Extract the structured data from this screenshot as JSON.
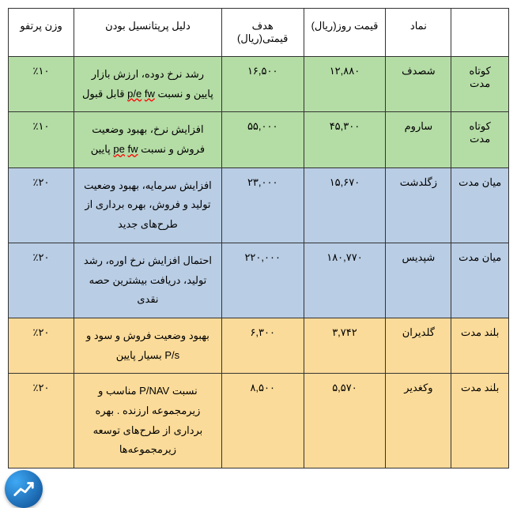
{
  "headers": {
    "term": "",
    "symbol": "نماد",
    "day_price": "قیمت روز(ریال)",
    "target_price": "هدف قیمتی(ریال)",
    "reason": "دلیل پرپتانسیل بودن",
    "weight": "وزن پرتفو"
  },
  "rows": [
    {
      "class": "green",
      "term": "کوتاه مدت",
      "symbol": "شصدف",
      "day_price": "۱۲,۸۸۰",
      "target_price": "۱۶,۵۰۰",
      "reason_html": "رشد نرخ دوده، ارزش بازار پایین و نسبت <span class=\"underline-red\">p/e</span> <span class=\"underline-red\">fw</span> قابل قبول",
      "weight": "٪۱۰"
    },
    {
      "class": "green",
      "term": "کوتاه مدت",
      "symbol": "ساروم",
      "day_price": "۴۵,۳۰۰",
      "target_price": "۵۵,۰۰۰",
      "reason_html": "افزایش نرخ، بهبود وضعیت فروش و نسبت <span class=\"underline-red\">pe</span> <span class=\"underline-red\">fw</span> پایین",
      "weight": "٪۱۰"
    },
    {
      "class": "blue",
      "term": "میان مدت",
      "symbol": "زگلدشت",
      "day_price": "۱۵,۶۷۰",
      "target_price": "۲۳,۰۰۰",
      "reason_html": "افزایش سرمایه، بهبود وضعیت تولید و فروش، بهره برداری از طرح‌های جدید",
      "weight": "٪۲۰"
    },
    {
      "class": "blue",
      "term": "میان مدت",
      "symbol": "شپدیس",
      "day_price": "۱۸۰,۷۷۰",
      "target_price": "۲۲۰,۰۰۰",
      "reason_html": "احتمال افزایش نرخ اوره، رشد تولید، دریافت بیشترین حصه نقدی",
      "weight": "٪۲۰"
    },
    {
      "class": "yellow",
      "term": "بلند مدت",
      "symbol": "گلدیران",
      "day_price": "۳,۷۴۲",
      "target_price": "۶,۳۰۰",
      "reason_html": "بهبود وضعیت فروش و سود و P/s بسیار پایین",
      "weight": "٪۲۰"
    },
    {
      "class": "yellow",
      "term": "بلند مدت",
      "symbol": "وکغدیر",
      "day_price": "۵,۵۷۰",
      "target_price": "۸,۵۰۰",
      "reason_html": "نسبت P/NAV مناسب و زیرمجموعه ارزنده . بهره برداری از طرح‌های توسعه زیرمجموعه‌ها",
      "weight": "٪۲۰"
    }
  ],
  "colors": {
    "green": "#b4dca5",
    "blue": "#b9cde4",
    "yellow": "#fbdb99",
    "border": "#333333",
    "logo_gradient_from": "#3fa9f5",
    "logo_gradient_to": "#0b4a8f"
  },
  "fonts": {
    "cell_size_pt": 10,
    "family": "Tahoma"
  }
}
